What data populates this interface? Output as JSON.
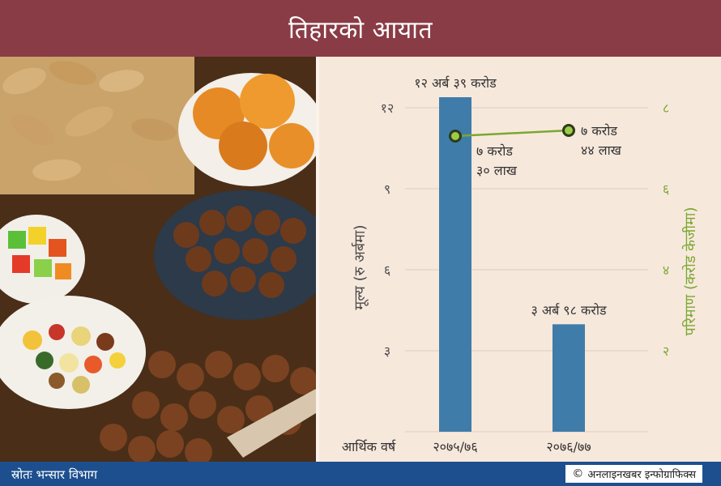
{
  "header": {
    "title": "तिहारको आयात"
  },
  "chart_data": {
    "type": "bar",
    "categories": [
      "२०७५/७६",
      "२०७६/७७"
    ],
    "x_axis_title": "आर्थिक वर्ष",
    "series": [
      {
        "values": [
          12.39,
          3.98
        ],
        "labels": [
          "१२ अर्ब ३९ करोड",
          "३ अर्ब ९८ करोड"
        ],
        "axis": "left",
        "color": "#3f7ca9"
      },
      {
        "type": "line",
        "values": [
          7.3,
          7.44
        ],
        "labels": [
          [
            "७ करोड",
            "३० लाख"
          ],
          [
            "७ करोड",
            "४४ लाख"
          ]
        ],
        "axis": "right",
        "color": "#7aa832"
      }
    ],
    "left_axis": {
      "title": "मूल्य (रु अर्बमा)",
      "ticks": [
        "३",
        "६",
        "९",
        "१२"
      ],
      "tick_values": [
        3,
        6,
        9,
        12
      ],
      "ylim": [
        0,
        12
      ]
    },
    "right_axis": {
      "title": "परिमाण (करोड केजीमा)",
      "ticks": [
        "२",
        "४",
        "६",
        "८"
      ],
      "tick_values": [
        2,
        4,
        6,
        8
      ],
      "ylim": [
        0,
        8
      ]
    },
    "grid": true
  },
  "footer": {
    "source": "स्रोतः भन्सार विभाग",
    "credit": "अनलाइनखबर इन्फोग्राफिक्स",
    "copyright_symbol": "©"
  },
  "photo": {
    "subject": "dried-fruits-and-nuts"
  },
  "colors": {
    "header": "#8a3c46",
    "footer": "#1d4f8f",
    "background": "#f7e8dc",
    "bar": "#3f7ca9",
    "line": "#7aa832",
    "axis_text": "#4b4b4b"
  }
}
